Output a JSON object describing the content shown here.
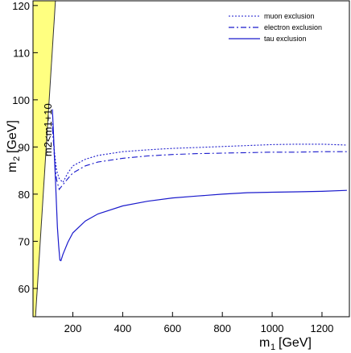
{
  "chart_data": {
    "type": "line",
    "title": "",
    "xlabel": {
      "main": "m",
      "sub": "1",
      "unit": "[GeV]"
    },
    "ylabel": {
      "main": "m",
      "sub": "2",
      "unit": "[GeV]"
    },
    "xlim": [
      40,
      1310
    ],
    "ylim": [
      54,
      121
    ],
    "xticks": [
      200,
      400,
      600,
      800,
      1000,
      1200
    ],
    "yticks": [
      60,
      70,
      80,
      90,
      100,
      110,
      120
    ],
    "grid": false,
    "legend_position": "top-right",
    "band": {
      "label": "m2<m1+10",
      "color": "#ffff80",
      "boundary": [
        [
          50,
          54
        ],
        [
          130,
          121
        ]
      ],
      "left_edge_x": 40
    },
    "series": [
      {
        "name": "muon exclusion",
        "style": "dotted",
        "color": "#1a1acc",
        "x": [
          118,
          122,
          126,
          130,
          135,
          145,
          160,
          180,
          200,
          250,
          300,
          400,
          500,
          600,
          700,
          800,
          900,
          1000,
          1100,
          1200,
          1300
        ],
        "y": [
          95,
          92,
          89,
          87,
          85,
          83.3,
          82.5,
          84.5,
          86,
          87.4,
          88.2,
          89,
          89.4,
          89.7,
          89.9,
          90.1,
          90.3,
          90.5,
          90.6,
          90.6,
          90.4
        ]
      },
      {
        "name": "electron exclusion",
        "style": "dashdot",
        "color": "#1a1acc",
        "x": [
          118,
          122,
          126,
          130,
          135,
          145,
          160,
          180,
          200,
          250,
          300,
          400,
          500,
          600,
          700,
          800,
          900,
          1000,
          1100,
          1200,
          1300
        ],
        "y": [
          94,
          91,
          88,
          85,
          83,
          81,
          82,
          83.3,
          84.5,
          86,
          86.8,
          87.6,
          88.1,
          88.4,
          88.6,
          88.7,
          88.8,
          88.9,
          88.9,
          89,
          89
        ]
      },
      {
        "name": "tau exclusion",
        "style": "solid",
        "color": "#1a1acc",
        "x": [
          118,
          122,
          126,
          130,
          134,
          138,
          143,
          148,
          152,
          160,
          180,
          200,
          250,
          300,
          400,
          500,
          600,
          700,
          800,
          900,
          1000,
          1100,
          1200,
          1300
        ],
        "y": [
          98,
          93,
          88,
          83,
          78,
          73,
          69,
          66,
          65.9,
          67.2,
          69.8,
          71.8,
          74.3,
          75.8,
          77.5,
          78.5,
          79.2,
          79.6,
          80,
          80.3,
          80.4,
          80.5,
          80.6,
          80.8
        ]
      }
    ]
  }
}
